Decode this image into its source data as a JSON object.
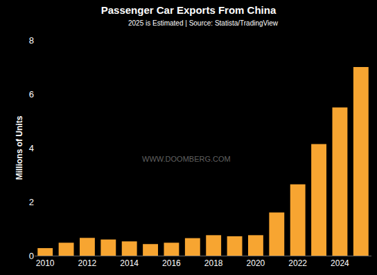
{
  "chart_data": {
    "type": "bar",
    "title": "Passenger Car Exports From China",
    "subtitle": "2025 is Estimated | Source: Statista/TradingView",
    "y_label": "Millions of Units",
    "annotations": [
      {
        "text": "WWW.DOOMBERG.COM"
      }
    ],
    "x": [
      2010,
      2011,
      2012,
      2013,
      2014,
      2015,
      2016,
      2017,
      2018,
      2019,
      2020,
      2021,
      2022,
      2023,
      2024,
      2025
    ],
    "values": [
      0.28,
      0.48,
      0.66,
      0.6,
      0.53,
      0.43,
      0.48,
      0.65,
      0.76,
      0.72,
      0.76,
      1.6,
      2.65,
      4.14,
      5.5,
      7.0
    ],
    "color": "#f7a531",
    "xlim": [
      2009.5,
      2025.5
    ],
    "xticks": [
      2010,
      2012,
      2014,
      2016,
      2018,
      2020,
      2022,
      2024
    ],
    "ylim": [
      0,
      8
    ],
    "yticks": [
      0,
      2,
      4,
      6,
      8
    ],
    "grid": false
  }
}
